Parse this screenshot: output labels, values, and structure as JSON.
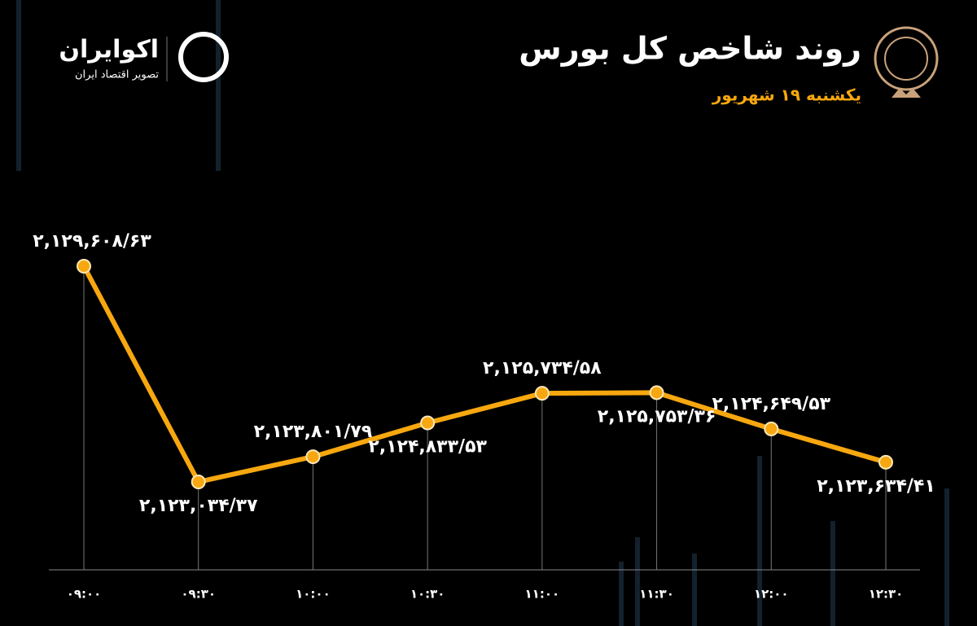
{
  "brand": {
    "name": "اکوایران",
    "tagline": "تصویر اقتصاد ایران"
  },
  "chart_data": {
    "type": "line",
    "title": "روند شاخص کل بورس",
    "subtitle": "یکشنبه ۱۹ شهریور",
    "categories": [
      "۰۹:۰۰",
      "۰۹:۳۰",
      "۱۰:۰۰",
      "۱۰:۳۰",
      "۱۱:۰۰",
      "۱۱:۳۰",
      "۱۲:۰۰",
      "۱۲:۳۰"
    ],
    "series": [
      {
        "color": "#f7a70f",
        "values": [
          2129608.63,
          2123034.37,
          2123801.79,
          2124833.53,
          2125734.58,
          2125753.36,
          2124649.53,
          2123634.41
        ],
        "value_labels": [
          "۲,۱۲۹,۶۰۸/۶۳",
          "۲,۱۲۳,۰۳۴/۳۷",
          "۲,۱۲۳,۸۰۱/۷۹",
          "۲,۱۲۴,۸۳۳/۵۳",
          "۲,۱۲۵,۷۳۴/۵۸",
          "۲,۱۲۵,۷۵۳/۳۶",
          "۲,۱۲۴,۶۴۹/۵۳",
          "۲,۱۲۳,۶۳۴/۴۱"
        ]
      }
    ]
  }
}
